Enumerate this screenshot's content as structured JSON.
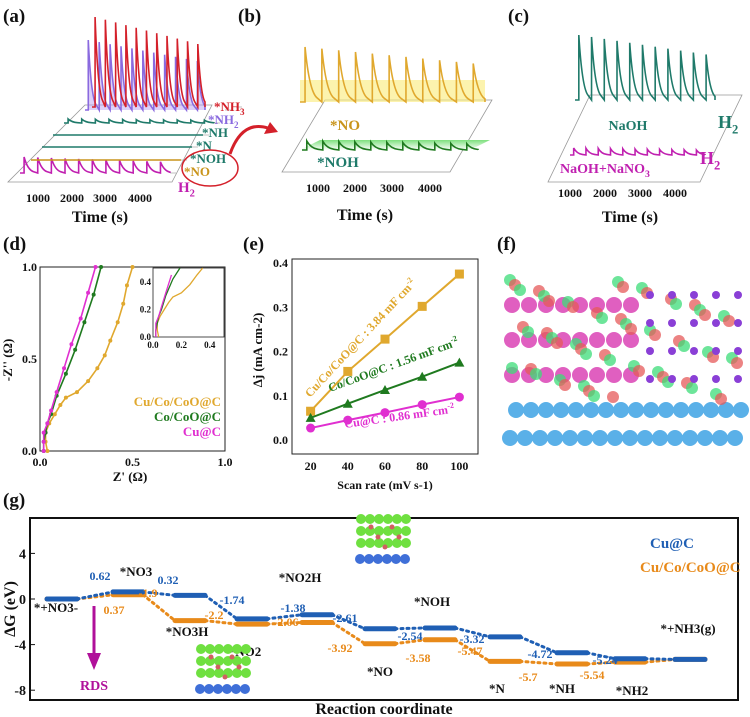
{
  "panel_labels": [
    "(a)",
    "(b)",
    "(c)",
    "(d)",
    "(e)",
    "(f)",
    "(g)"
  ],
  "colors": {
    "cu_c": "#e02fd0",
    "co_coo_c": "#1f7a1f",
    "cu_co_coo_c": "#e0a82e",
    "g_cu_c": "#1f5fb4",
    "g_cu_co_coo_c": "#e88a1a",
    "rds": "#b0109a",
    "nh3": "#d4202a",
    "nh2": "#8a6adf",
    "teal": "#1f7a6a",
    "no": "#c9941a",
    "h2": "#c020b0"
  },
  "chart_data": [
    {
      "id": "a",
      "type": "line",
      "subtype": "waterfall",
      "xlabel": "Time (s)",
      "xticks": [
        "1000",
        "2000",
        "3000",
        "4000"
      ],
      "series": [
        {
          "name": "H2",
          "label_main": "H",
          "label_sub": "2",
          "peak": "low"
        },
        {
          "name": "*NO",
          "label_main": "*NO",
          "label_sub": "",
          "peak": "flat"
        },
        {
          "name": "*NOH",
          "label_main": "*NOH",
          "label_sub": "",
          "peak": "flat"
        },
        {
          "name": "*N",
          "label_main": "*N",
          "label_sub": "",
          "peak": "flat"
        },
        {
          "name": "*NH",
          "label_main": "*NH",
          "label_sub": "",
          "peak": "low"
        },
        {
          "name": "*NH2",
          "label_main": "*NH",
          "label_sub": "2",
          "peak": "high"
        },
        {
          "name": "*NH3",
          "label_main": "*NH",
          "label_sub": "3",
          "peak": "highest"
        }
      ],
      "peak_count": 11
    },
    {
      "id": "b",
      "type": "line",
      "subtype": "waterfall",
      "xlabel": "Time (s)",
      "xticks": [
        "1000",
        "2000",
        "3000",
        "4000"
      ],
      "series": [
        {
          "name": "*NOH",
          "peak": "low"
        },
        {
          "name": "*NO",
          "peak": "high"
        }
      ],
      "peak_count": 11
    },
    {
      "id": "c",
      "type": "line",
      "subtype": "waterfall",
      "xlabel": "Time (s)",
      "xticks": [
        "1000",
        "2000",
        "3000",
        "4000"
      ],
      "series": [
        {
          "name": "NaOH+NaNO3",
          "label_main": "NaOH+NaNO",
          "label_sub": "3",
          "gas_main": "H",
          "gas_sub": "2",
          "peak": "low"
        },
        {
          "name": "NaOH",
          "label_main": "NaOH",
          "label_sub": "",
          "gas_main": "H",
          "gas_sub": "2",
          "peak": "high"
        }
      ],
      "peak_count": 11
    },
    {
      "id": "d",
      "type": "scatter",
      "subtype": "nyquist",
      "xlabel": "Z' (Ω)",
      "ylabel": "-Z'' (Ω)",
      "xlim": [
        0,
        1
      ],
      "ylim": [
        0,
        1
      ],
      "xticks": [
        "0.0",
        "0.5",
        "1.0"
      ],
      "yticks": [
        "0.0",
        "0.5",
        "1.0"
      ],
      "series": [
        {
          "name": "Cu/Co/CoO@C",
          "points": [
            [
              0.04,
              0.0
            ],
            [
              0.03,
              0.05
            ],
            [
              0.03,
              0.1
            ],
            [
              0.05,
              0.15
            ],
            [
              0.08,
              0.2
            ],
            [
              0.11,
              0.25
            ],
            [
              0.14,
              0.29
            ],
            [
              0.2,
              0.32
            ],
            [
              0.26,
              0.38
            ],
            [
              0.31,
              0.45
            ],
            [
              0.35,
              0.52
            ],
            [
              0.38,
              0.6
            ],
            [
              0.42,
              0.7
            ],
            [
              0.45,
              0.8
            ],
            [
              0.47,
              0.9
            ],
            [
              0.5,
              1.0
            ]
          ]
        },
        {
          "name": "Co/CoO@C",
          "points": [
            [
              0.02,
              0.0
            ],
            [
              0.02,
              0.05
            ],
            [
              0.03,
              0.1
            ],
            [
              0.04,
              0.15
            ],
            [
              0.06,
              0.2
            ],
            [
              0.09,
              0.3
            ],
            [
              0.14,
              0.42
            ],
            [
              0.19,
              0.55
            ],
            [
              0.24,
              0.7
            ],
            [
              0.29,
              0.85
            ],
            [
              0.33,
              1.0
            ]
          ]
        },
        {
          "name": "Cu@C",
          "points": [
            [
              0.02,
              0.0
            ],
            [
              0.02,
              0.05
            ],
            [
              0.02,
              0.1
            ],
            [
              0.04,
              0.15
            ],
            [
              0.06,
              0.22
            ],
            [
              0.09,
              0.32
            ],
            [
              0.13,
              0.45
            ],
            [
              0.17,
              0.58
            ],
            [
              0.22,
              0.72
            ],
            [
              0.26,
              0.86
            ],
            [
              0.3,
              1.0
            ]
          ]
        }
      ],
      "inset": {
        "xlim": [
          0,
          0.5
        ],
        "ylim": [
          0,
          0.5
        ],
        "xticks": [
          "0.0",
          "0.2",
          "0.4"
        ],
        "yticks": [
          "0.0",
          "0.2",
          "0.4"
        ]
      },
      "legend": "bottom-right"
    },
    {
      "id": "e",
      "type": "line",
      "xlabel": "Scan rate (mV s-1)",
      "ylabel": "Δj (mA cm-2)",
      "xlim": [
        10,
        110
      ],
      "ylim": [
        0,
        0.4
      ],
      "xticks": [
        "20",
        "40",
        "60",
        "80",
        "100"
      ],
      "yticks": [
        "0.0",
        "0.1",
        "0.2",
        "0.3",
        "0.4"
      ],
      "x": [
        20,
        40,
        60,
        80,
        100
      ],
      "series": [
        {
          "name": "Cu/Co/CoO@C",
          "label": "Cu/Co/CoO@C : 3.84 mF cm",
          "values": [
            0.065,
            0.155,
            0.228,
            0.302,
            0.375
          ],
          "marker": "square"
        },
        {
          "name": "Co/CoO@C",
          "label": "Co/CoO@C : 1.56 mF cm",
          "values": [
            0.05,
            0.082,
            0.113,
            0.143,
            0.175
          ],
          "marker": "triangle"
        },
        {
          "name": "Cu@C",
          "label": "Cu@C : 0.86 mF cm",
          "values": [
            0.027,
            0.045,
            0.062,
            0.08,
            0.097
          ],
          "marker": "circle"
        }
      ],
      "label_sup": "-2"
    },
    {
      "id": "g",
      "type": "line",
      "subtype": "free-energy-diagram",
      "xlabel": "Reaction coordinate",
      "ylabel": "ΔG (eV)",
      "ylim": [
        -10,
        5
      ],
      "yticks": [
        "4",
        "0",
        "-4",
        "-8"
      ],
      "states": [
        "*+NO3-",
        "*NO3",
        "*NO3H",
        "*NO2",
        "*NO2H",
        "*NO",
        "*NOH",
        "*N",
        "*NH",
        "*NH2",
        "*+NH3(g)"
      ],
      "series": [
        {
          "name": "Cu@C",
          "values": [
            0,
            0.62,
            0.32,
            -1.74,
            -1.38,
            -2.61,
            -2.54,
            -3.32,
            -4.72,
            -5.24,
            -5.3
          ],
          "labels": [
            "",
            "0.62",
            "0.32",
            "-1.74",
            "-1.38",
            "-2.61",
            "-2.54",
            "-3.32",
            "-4.72",
            "-5.24",
            ""
          ]
        },
        {
          "name": "Cu/Co/CoO@C",
          "values": [
            0,
            0.37,
            -1.9,
            -2.2,
            -2.06,
            -3.92,
            -3.58,
            -5.47,
            -5.7,
            -5.54,
            -5.3
          ],
          "labels": [
            "",
            "0.37",
            "-1.9",
            "-2.2",
            "-2.06",
            "-3.92",
            "-3.58",
            "-5.47",
            "-5.7",
            "-5.54",
            ""
          ]
        }
      ],
      "annotation": "RDS",
      "legend": "top-right"
    }
  ]
}
